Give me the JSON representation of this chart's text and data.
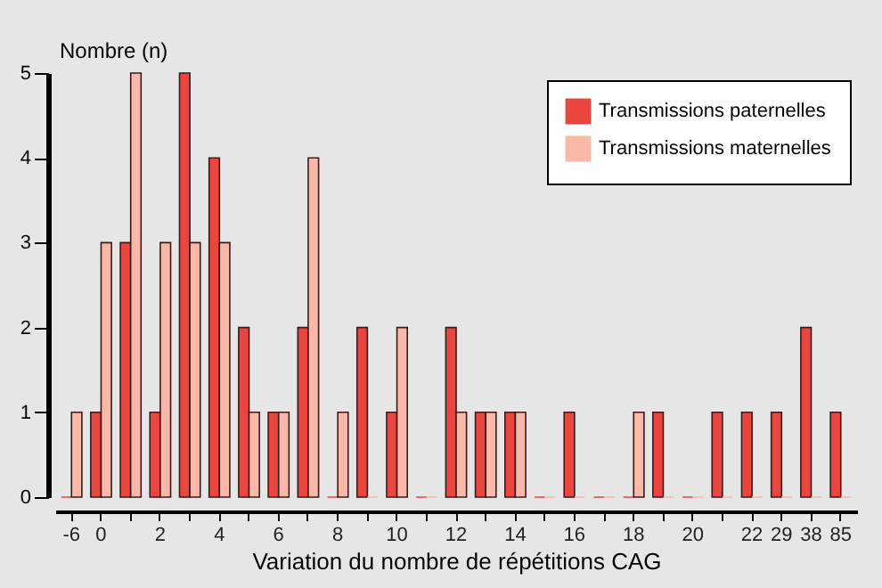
{
  "chart_data": {
    "type": "bar",
    "xlabel": "Variation du nombre de répétitions CAG",
    "ylabel": "Nombre (n)",
    "categories": [
      "-6",
      "0",
      null,
      "2",
      null,
      "4",
      null,
      "6",
      null,
      "8",
      null,
      "10",
      null,
      "12",
      null,
      "14",
      null,
      "16",
      null,
      "18",
      null,
      "20",
      null,
      "22",
      "29",
      "38",
      "85"
    ],
    "series": [
      {
        "name": "Transmissions paternelles",
        "color": "#e8463e",
        "values": [
          0,
          1,
          3,
          1,
          5,
          4,
          2,
          1,
          2,
          0,
          2,
          1,
          0,
          2,
          1,
          1,
          0,
          1,
          0,
          0,
          1,
          0,
          1,
          1,
          1,
          2,
          1
        ]
      },
      {
        "name": "Transmissions maternelles",
        "color": "#f9b8a8",
        "values": [
          1,
          3,
          5,
          3,
          3,
          3,
          1,
          1,
          4,
          1,
          0,
          2,
          0,
          1,
          1,
          1,
          0,
          0,
          0,
          1,
          0,
          0,
          0,
          0,
          0,
          0,
          0
        ]
      }
    ],
    "ylim": [
      0,
      5
    ],
    "yticks": [
      0,
      1,
      2,
      3,
      4,
      5
    ],
    "grid": false,
    "legend": "top right"
  }
}
